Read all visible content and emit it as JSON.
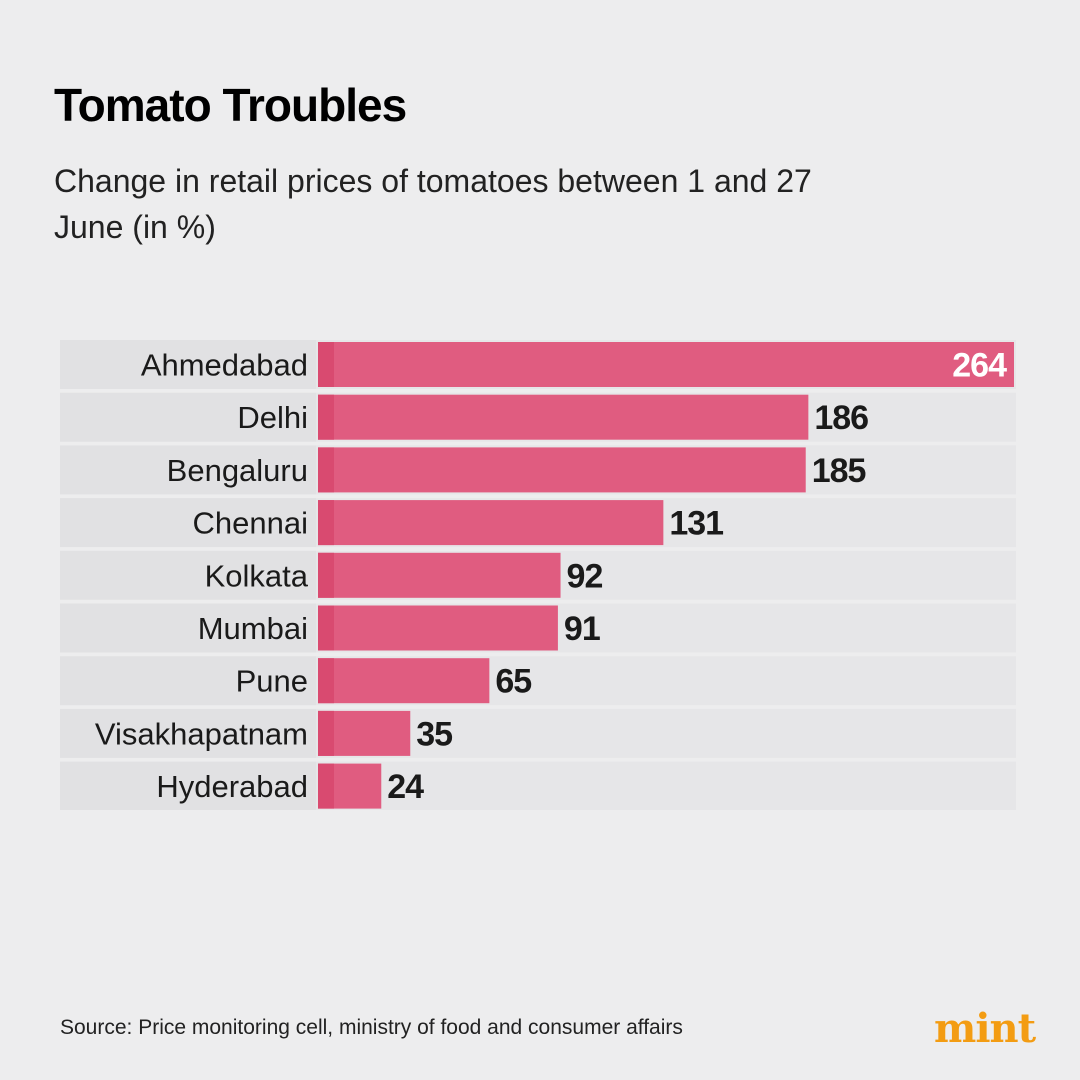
{
  "header": {
    "title": "Tomato Troubles",
    "subtitle": "Change in retail prices of tomatoes between 1 and 27 June (in %)"
  },
  "chart_data": {
    "type": "bar",
    "orientation": "horizontal",
    "title": "Tomato Troubles",
    "subtitle": "Change in retail prices of tomatoes between 1 and 27 June (in %)",
    "xlabel": "",
    "ylabel": "",
    "xlim": [
      0,
      264
    ],
    "grid": false,
    "categories": [
      "Ahmedabad",
      "Delhi",
      "Bengaluru",
      "Chennai",
      "Kolkata",
      "Mumbai",
      "Pune",
      "Visakhapatnam",
      "Hyderabad"
    ],
    "values": [
      264,
      186,
      185,
      131,
      92,
      91,
      65,
      35,
      24
    ],
    "value_labels": [
      "264",
      "186",
      "185",
      "131",
      "92",
      "91",
      "65",
      "35",
      "24"
    ],
    "colors": {
      "bar": "#e05c80",
      "bar_edge": "#d94a70",
      "row_label_bg": "#e1e1e3",
      "row_track_bg": "#e6e6e8",
      "value_text": "#1a1a1a",
      "value_text_inside": "#ffffff"
    }
  },
  "footer": {
    "source": "Source: Price monitoring cell, ministry of food and consumer affairs",
    "logo_text": "mint",
    "logo_color": "#f39c12"
  }
}
